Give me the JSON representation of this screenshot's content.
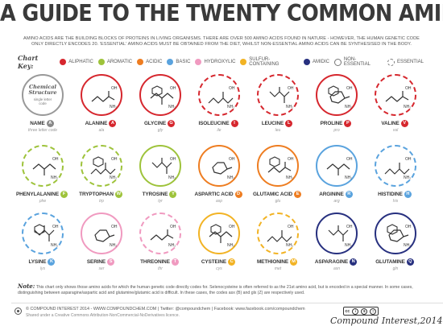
{
  "title": "A GUIDE TO THE TWENTY COMMON AMINO ACIDS",
  "intro": "AMINO ACIDS ARE THE BUILDING BLOCKS OF PROTEINS IN LIVING ORGANISMS. THERE ARE OVER 500 AMINO ACIDS FOUND IN NATURE - HOWEVER, THE HUMAN GENETIC CODE ONLY DIRECTLY ENCODES 20. 'ESSENTIAL' AMINO ACIDS MUST BE OBTAINED FROM THE DIET, WHILST NON-ESSENTIAL AMINO ACIDS CAN BE SYNTHESISED IN THE BODY.",
  "key": {
    "title": "Chart Key:",
    "categories": [
      {
        "label": "ALIPHATIC",
        "color": "#d6272e"
      },
      {
        "label": "AROMATIC",
        "color": "#9ec33b"
      },
      {
        "label": "ACIDIC",
        "color": "#ee7d21"
      },
      {
        "label": "BASIC",
        "color": "#5aa3de"
      },
      {
        "label": "HYDROXYLIC",
        "color": "#f09ac0"
      },
      {
        "label": "SULFUR-CONTAINING",
        "color": "#f2b324"
      },
      {
        "label": "AMIDIC",
        "color": "#27307f"
      }
    ],
    "non_essential": "NON-ESSENTIAL",
    "essential": "ESSENTIAL"
  },
  "legend": {
    "title_line1": "Chemical",
    "title_line2": "Structure",
    "sub_line1": "single letter",
    "sub_line2": "code",
    "name": "NAME",
    "badge": "A",
    "abbr": "three letter code"
  },
  "amino_acids": [
    {
      "name": "ALANINE",
      "letter": "A",
      "abbr": "ala",
      "category": "aliphatic",
      "color": "#d6272e",
      "essential": false,
      "icon": "alanine-structure"
    },
    {
      "name": "GLYCINE",
      "letter": "G",
      "abbr": "gly",
      "category": "aliphatic",
      "color": "#d6272e",
      "essential": false,
      "icon": "glycine-structure"
    },
    {
      "name": "ISOLEUCINE",
      "letter": "I",
      "abbr": "ile",
      "category": "aliphatic",
      "color": "#d6272e",
      "essential": true,
      "icon": "isoleucine-structure"
    },
    {
      "name": "LEUCINE",
      "letter": "L",
      "abbr": "leu",
      "category": "aliphatic",
      "color": "#d6272e",
      "essential": true,
      "icon": "leucine-structure"
    },
    {
      "name": "PROLINE",
      "letter": "P",
      "abbr": "pro",
      "category": "aliphatic",
      "color": "#d6272e",
      "essential": false,
      "icon": "proline-structure"
    },
    {
      "name": "VALINE",
      "letter": "V",
      "abbr": "val",
      "category": "aliphatic",
      "color": "#d6272e",
      "essential": true,
      "icon": "valine-structure"
    },
    {
      "name": "PHENYLALANINE",
      "letter": "F",
      "abbr": "phe",
      "category": "aromatic",
      "color": "#9ec33b",
      "essential": true,
      "icon": "phenylalanine-structure"
    },
    {
      "name": "TRYPTOPHAN",
      "letter": "W",
      "abbr": "trp",
      "category": "aromatic",
      "color": "#9ec33b",
      "essential": true,
      "icon": "tryptophan-structure"
    },
    {
      "name": "TYROSINE",
      "letter": "Y",
      "abbr": "tyr",
      "category": "aromatic",
      "color": "#9ec33b",
      "essential": false,
      "icon": "tyrosine-structure"
    },
    {
      "name": "ASPARTIC ACID",
      "letter": "D",
      "abbr": "asp",
      "category": "acidic",
      "color": "#ee7d21",
      "essential": false,
      "icon": "aspartic-acid-structure"
    },
    {
      "name": "GLUTAMIC ACID",
      "letter": "E",
      "abbr": "glu",
      "category": "acidic",
      "color": "#ee7d21",
      "essential": false,
      "icon": "glutamic-acid-structure"
    },
    {
      "name": "ARGININE",
      "letter": "R",
      "abbr": "arg",
      "category": "basic",
      "color": "#5aa3de",
      "essential": false,
      "icon": "arginine-structure"
    },
    {
      "name": "HISTIDINE",
      "letter": "H",
      "abbr": "his",
      "category": "basic",
      "color": "#5aa3de",
      "essential": true,
      "icon": "histidine-structure"
    },
    {
      "name": "LYSINE",
      "letter": "K",
      "abbr": "lys",
      "category": "basic",
      "color": "#5aa3de",
      "essential": true,
      "icon": "lysine-structure"
    },
    {
      "name": "SERINE",
      "letter": "S",
      "abbr": "ser",
      "category": "hydroxylic",
      "color": "#f09ac0",
      "essential": false,
      "icon": "serine-structure"
    },
    {
      "name": "THREONINE",
      "letter": "T",
      "abbr": "thr",
      "category": "hydroxylic",
      "color": "#f09ac0",
      "essential": true,
      "icon": "threonine-structure"
    },
    {
      "name": "CYSTEINE",
      "letter": "C",
      "abbr": "cys",
      "category": "sulfur-containing",
      "color": "#f2b324",
      "essential": false,
      "icon": "cysteine-structure"
    },
    {
      "name": "METHIONINE",
      "letter": "M",
      "abbr": "met",
      "category": "sulfur-containing",
      "color": "#f2b324",
      "essential": true,
      "icon": "methionine-structure"
    },
    {
      "name": "ASPARAGINE",
      "letter": "N",
      "abbr": "asn",
      "category": "amidic",
      "color": "#27307f",
      "essential": false,
      "icon": "asparagine-structure"
    },
    {
      "name": "GLUTAMINE",
      "letter": "Q",
      "abbr": "gln",
      "category": "amidic",
      "color": "#27307f",
      "essential": false,
      "icon": "glutamine-structure"
    }
  ],
  "note_label": "Note:",
  "note": "This chart only shows those amino acids for which the human genetic code directly codes for. Selenocysteine is often referred to as the 21st amino acid, but is encoded in a special manner. In some cases, distinguishing between asparagine/aspartic acid and glutamine/glutamic acid is difficult. In these cases, the codes asx (B) and glx (Z) are respectively used.",
  "footer": {
    "line1": "© COMPOUND INTEREST 2014 - WWW.COMPOUNDCHEM.COM | Twitter: @compoundchem | Facebook: www.facebook.com/compoundchem",
    "line2": "Shared under a Creative Commons Attribution-NonCommercial-NoDerivatives licence.",
    "cc_label": "cc",
    "cc_icons": [
      "i",
      "$",
      "="
    ],
    "brand": "Compound Interest,2014"
  }
}
